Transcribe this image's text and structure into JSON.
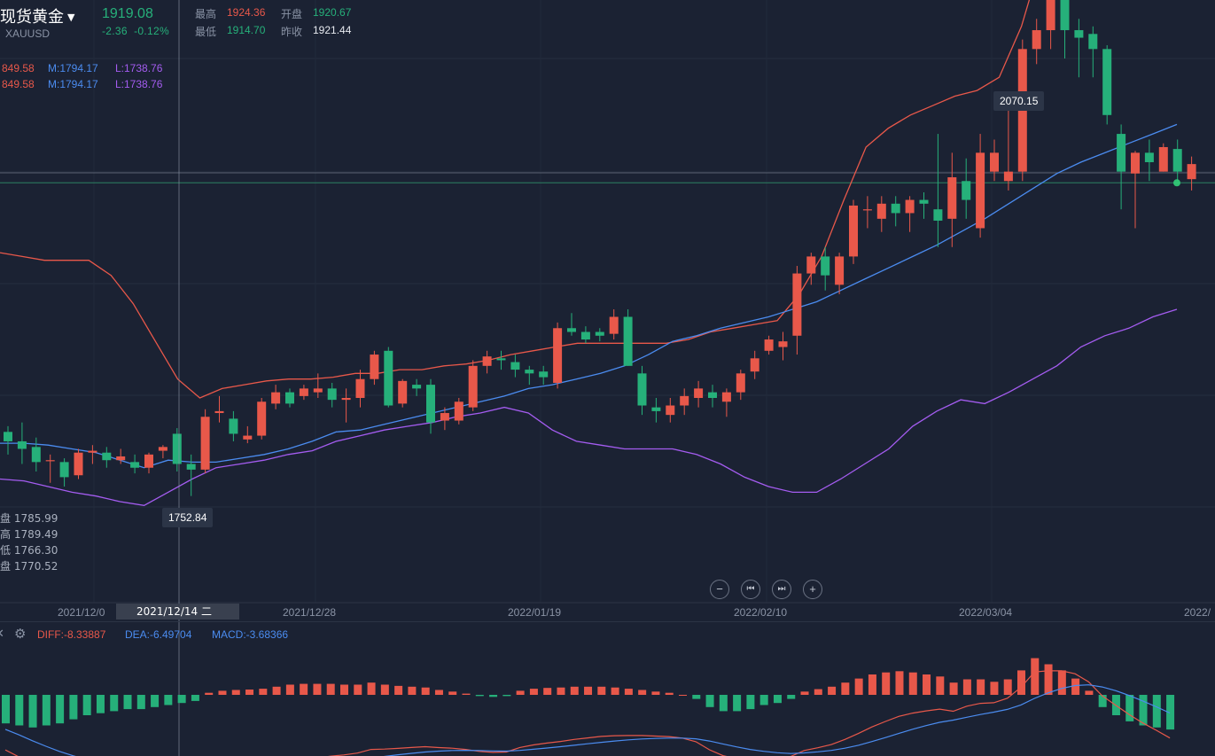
{
  "header": {
    "name": "现货黄金",
    "code": "XAUUSD",
    "price": "1919.08",
    "change": "-2.36",
    "change_pct": "-0.12%",
    "stats": {
      "high_label": "最高",
      "high": "1924.36",
      "open_label": "开盘",
      "open": "1920.67",
      "low_label": "最低",
      "low": "1914.70",
      "prev_close_label": "昨收",
      "prev_close": "1921.44"
    }
  },
  "indicator_lines": [
    {
      "u": "849.58",
      "m": "M:1794.17",
      "l": "L:1738.76"
    },
    {
      "u": "849.58",
      "m": "M:1794.17",
      "l": "L:1738.76"
    }
  ],
  "crosshair": {
    "ohlc": [
      "盘 1785.99",
      "高 1789.49",
      "低 1766.30",
      "盘 1770.52"
    ],
    "date": "2021/12/14 二",
    "low_tag": "1752.84"
  },
  "high_tag": "2070.15",
  "x_axis": [
    "2021/12/0",
    "2021/12/28",
    "2022/01/19",
    "2022/02/10",
    "2022/03/04",
    "2022/"
  ],
  "nav": {
    "zoom_out": "−",
    "prev": "⏮",
    "next": "⏭",
    "zoom_in": "+"
  },
  "macd": {
    "diff": "DIFF:-8.33887",
    "dea": "DEA:-6.49704",
    "macd": "MACD:-3.68366"
  },
  "colors": {
    "up": "#e8584a",
    "down": "#26b07a",
    "mid": "#4b8cf0",
    "lower": "#a45cf0",
    "bg": "#1b2233"
  },
  "chart_data": {
    "type": "candlestick",
    "candles": [
      [
        1787,
        1790,
        1775,
        1782
      ],
      [
        1782,
        1792,
        1770,
        1778
      ],
      [
        1779,
        1784,
        1766,
        1771
      ],
      [
        1772,
        1775,
        1760,
        1772
      ],
      [
        1771,
        1773,
        1758,
        1763
      ],
      [
        1764,
        1778,
        1762,
        1776
      ],
      [
        1776,
        1780,
        1770,
        1777
      ],
      [
        1776,
        1779,
        1768,
        1772
      ],
      [
        1772,
        1778,
        1770,
        1774
      ],
      [
        1771,
        1775,
        1765,
        1768
      ],
      [
        1768,
        1776,
        1765,
        1775
      ],
      [
        1777,
        1780,
        1773,
        1779
      ],
      [
        1786,
        1789,
        1766,
        1770
      ],
      [
        1770,
        1775,
        1753,
        1767
      ],
      [
        1767,
        1799,
        1765,
        1795
      ],
      [
        1797,
        1806,
        1792,
        1798
      ],
      [
        1794,
        1798,
        1782,
        1786
      ],
      [
        1783,
        1790,
        1781,
        1785
      ],
      [
        1785,
        1805,
        1783,
        1803
      ],
      [
        1802,
        1812,
        1799,
        1808
      ],
      [
        1808,
        1810,
        1800,
        1802
      ],
      [
        1806,
        1812,
        1804,
        1810
      ],
      [
        1808,
        1818,
        1805,
        1810
      ],
      [
        1810,
        1813,
        1800,
        1804
      ],
      [
        1804,
        1810,
        1792,
        1805
      ],
      [
        1805,
        1820,
        1800,
        1815
      ],
      [
        1815,
        1830,
        1812,
        1828
      ],
      [
        1830,
        1832,
        1800,
        1801
      ],
      [
        1802,
        1815,
        1800,
        1814
      ],
      [
        1812,
        1815,
        1806,
        1810
      ],
      [
        1812,
        1815,
        1786,
        1792
      ],
      [
        1793,
        1800,
        1788,
        1797
      ],
      [
        1793,
        1805,
        1791,
        1803
      ],
      [
        1800,
        1825,
        1798,
        1822
      ],
      [
        1822,
        1830,
        1818,
        1827
      ],
      [
        1826,
        1830,
        1820,
        1825
      ],
      [
        1824,
        1828,
        1816,
        1820
      ],
      [
        1820,
        1822,
        1812,
        1818
      ],
      [
        1819,
        1822,
        1812,
        1816
      ],
      [
        1813,
        1845,
        1810,
        1842
      ],
      [
        1842,
        1850,
        1838,
        1840
      ],
      [
        1840,
        1843,
        1834,
        1836
      ],
      [
        1840,
        1842,
        1835,
        1838
      ],
      [
        1839,
        1852,
        1836,
        1848
      ],
      [
        1848,
        1852,
        1822,
        1822
      ],
      [
        1818,
        1822,
        1796,
        1801
      ],
      [
        1800,
        1805,
        1792,
        1798
      ],
      [
        1796,
        1805,
        1792,
        1801
      ],
      [
        1801,
        1810,
        1796,
        1806
      ],
      [
        1805,
        1814,
        1800,
        1810
      ],
      [
        1808,
        1812,
        1800,
        1805
      ],
      [
        1803,
        1810,
        1795,
        1808
      ],
      [
        1808,
        1820,
        1804,
        1818
      ],
      [
        1819,
        1830,
        1815,
        1826
      ],
      [
        1830,
        1838,
        1828,
        1836
      ],
      [
        1832,
        1840,
        1825,
        1835
      ],
      [
        1838,
        1875,
        1828,
        1871
      ],
      [
        1871,
        1882,
        1865,
        1880
      ],
      [
        1880,
        1885,
        1862,
        1870
      ],
      [
        1865,
        1882,
        1860,
        1880
      ],
      [
        1880,
        1910,
        1876,
        1907
      ],
      [
        1905,
        1912,
        1895,
        1905
      ],
      [
        1900,
        1912,
        1893,
        1908
      ],
      [
        1908,
        1912,
        1896,
        1903
      ],
      [
        1903,
        1912,
        1893,
        1910
      ],
      [
        1910,
        1914,
        1900,
        1908
      ],
      [
        1905,
        1945,
        1885,
        1899
      ],
      [
        1900,
        1935,
        1885,
        1922
      ],
      [
        1920,
        1932,
        1900,
        1910
      ],
      [
        1895,
        1945,
        1890,
        1935
      ],
      [
        1925,
        1942,
        1920,
        1935
      ],
      [
        1920,
        1960,
        1915,
        1925
      ],
      [
        1925,
        1995,
        1920,
        1990
      ],
      [
        1990,
        2006,
        1982,
        2000
      ],
      [
        2000,
        2070,
        1990,
        2055
      ],
      [
        2057,
        2070,
        1985,
        2000
      ],
      [
        2000,
        2006,
        1975,
        1996
      ],
      [
        1998,
        2002,
        1975,
        1990
      ],
      [
        1990,
        1992,
        1950,
        1955
      ],
      [
        1945,
        1950,
        1905,
        1925
      ],
      [
        1924,
        1936,
        1895,
        1935
      ],
      [
        1935,
        1942,
        1920,
        1930
      ],
      [
        1925,
        1940,
        1925,
        1938
      ],
      [
        1937,
        1942,
        1920,
        1925
      ],
      [
        1921,
        1933,
        1915,
        1929
      ]
    ],
    "series": [
      {
        "name": "U",
        "values": [
          1882,
          1880,
          1878,
          1878,
          1878,
          1870,
          1855,
          1835,
          1815,
          1805,
          1810,
          1812,
          1814,
          1815,
          1815,
          1816,
          1818,
          1818,
          1820,
          1820,
          1822,
          1823,
          1825,
          1828,
          1830,
          1832,
          1834,
          1834,
          1834,
          1834,
          1834,
          1836,
          1840,
          1842,
          1844,
          1846,
          1860,
          1880,
          1910,
          1938,
          1948,
          1955,
          1960,
          1965,
          1968,
          1975,
          2002,
          2042,
          2058,
          2060,
          2058,
          2056,
          2055,
          2055
        ]
      },
      {
        "name": "M",
        "values": [
          1781,
          1781,
          1780,
          1778,
          1776,
          1772,
          1768,
          1772,
          1771,
          1771,
          1773,
          1775,
          1778,
          1782,
          1787,
          1788,
          1791,
          1794,
          1797,
          1800,
          1803,
          1806,
          1810,
          1812,
          1815,
          1818,
          1822,
          1828,
          1835,
          1838,
          1842,
          1845,
          1848,
          1852,
          1856,
          1862,
          1868,
          1874,
          1880,
          1886,
          1893,
          1900,
          1908,
          1916,
          1924,
          1930,
          1935,
          1940,
          1945,
          1950
        ]
      },
      {
        "name": "L",
        "values": [
          1762,
          1761,
          1758,
          1755,
          1753,
          1750,
          1748,
          1755,
          1762,
          1768,
          1770,
          1772,
          1775,
          1777,
          1782,
          1785,
          1788,
          1790,
          1792,
          1795,
          1797,
          1800,
          1797,
          1788,
          1782,
          1780,
          1778,
          1778,
          1778,
          1775,
          1770,
          1763,
          1758,
          1755,
          1755,
          1762,
          1770,
          1778,
          1790,
          1798,
          1804,
          1802,
          1808,
          1815,
          1822,
          1832,
          1838,
          1842,
          1848,
          1852
        ]
      }
    ],
    "macd_hist": [
      -7,
      -7.5,
      -8,
      -7.5,
      -7,
      -6,
      -5,
      -4.5,
      -4,
      -3.5,
      -3.5,
      -3,
      -2.5,
      -2,
      -1.5,
      0.5,
      1,
      1.2,
      1.3,
      1.5,
      2,
      2.5,
      2.7,
      2.7,
      2.7,
      2.5,
      2.5,
      3,
      2.5,
      2.2,
      2,
      1.8,
      1.2,
      0.8,
      0.3,
      -0.3,
      -0.5,
      -0.3,
      1,
      1.5,
      1.7,
      1.8,
      2,
      2,
      2,
      1.8,
      1.5,
      1.2,
      0.8,
      0.5,
      0,
      -1,
      -3,
      -4,
      -4,
      -3.5,
      -2.5,
      -2,
      -1,
      0.8,
      1.4,
      2,
      3,
      4,
      5,
      5.5,
      5.8,
      5.5,
      5,
      4.5,
      3,
      3.8,
      3.8,
      3.2,
      3.8,
      6,
      9,
      7.5,
      6,
      4,
      1,
      -3,
      -5,
      -6.5,
      -7.5,
      -8,
      -8.5
    ]
  }
}
